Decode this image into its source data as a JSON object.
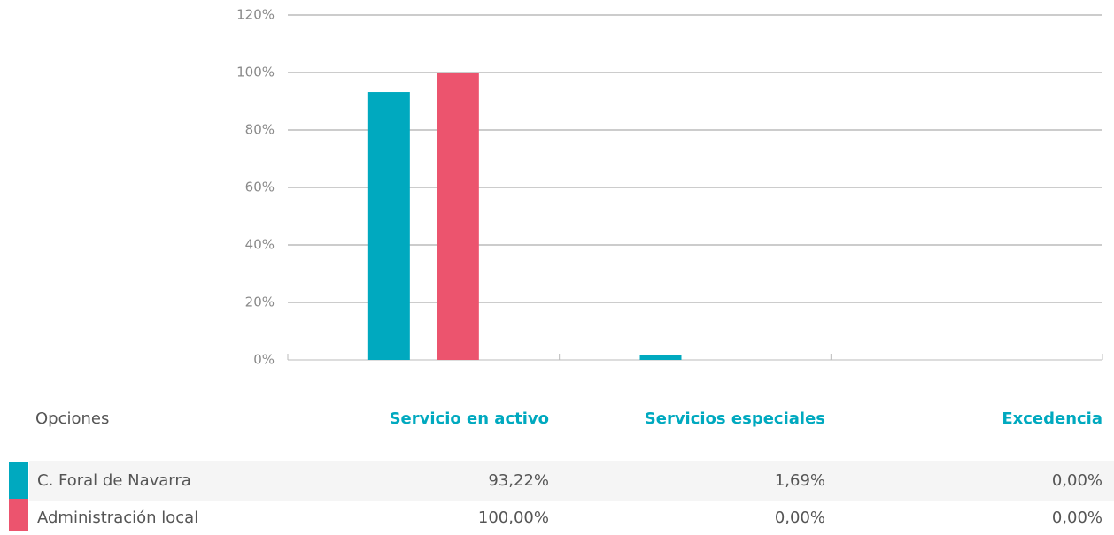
{
  "chart_data": {
    "type": "bar",
    "categories": [
      "Servicio en activo",
      "Servicios especiales",
      "Excedencia"
    ],
    "table_header": "Opciones",
    "series": [
      {
        "name": "C. Foral de Navarra",
        "color": "#00a9bf",
        "values": [
          93.22,
          1.69,
          0
        ],
        "value_labels": [
          "93,22%",
          "1,69%",
          "0,00%"
        ]
      },
      {
        "name": "Administración local",
        "color": "#ec546e",
        "values": [
          100,
          0,
          0
        ],
        "value_labels": [
          "100,00%",
          "0,00%",
          "0,00%"
        ]
      }
    ],
    "ylim": [
      0,
      120
    ],
    "yticks": [
      {
        "value": 0,
        "label": "0%"
      },
      {
        "value": 20,
        "label": "20%"
      },
      {
        "value": 40,
        "label": "40%"
      },
      {
        "value": 60,
        "label": "60%"
      },
      {
        "value": 80,
        "label": "80%"
      },
      {
        "value": 100,
        "label": "100%"
      },
      {
        "value": 120,
        "label": "120%"
      }
    ],
    "grid": true
  }
}
